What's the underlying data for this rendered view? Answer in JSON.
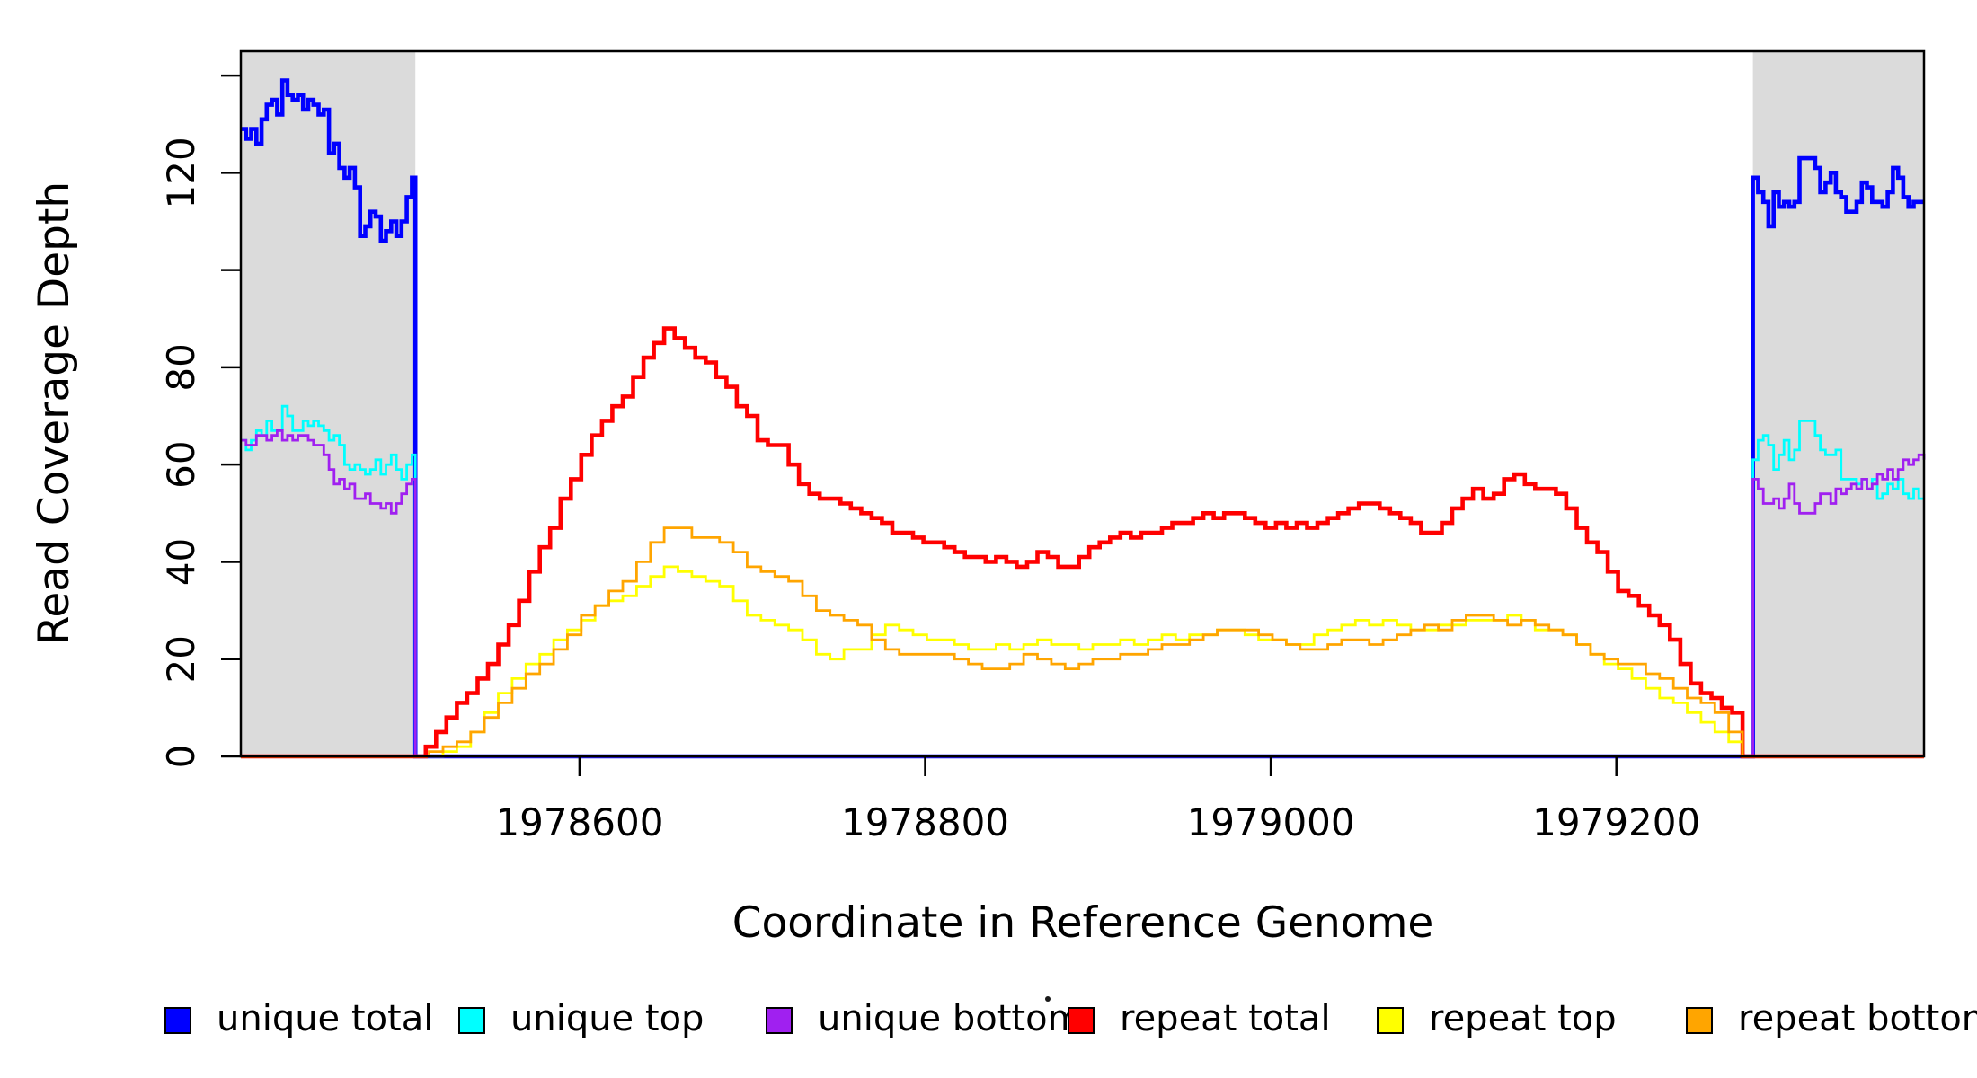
{
  "chart_data": {
    "type": "line",
    "title": "",
    "xlabel": "Coordinate in Reference Genome",
    "ylabel": "Read Coverage Depth",
    "xlim": [
      1978404,
      1979378
    ],
    "ylim": [
      0,
      145
    ],
    "grid": false,
    "interpolation": "step-after",
    "x_ticks": [
      {
        "value": 1978600,
        "label": "1978600"
      },
      {
        "value": 1978800,
        "label": "1978800"
      },
      {
        "value": 1979000,
        "label": "1979000"
      },
      {
        "value": 1979200,
        "label": "1979200"
      }
    ],
    "y_ticks": [
      {
        "value": 0,
        "label": "0"
      },
      {
        "value": 20,
        "label": "20"
      },
      {
        "value": 40,
        "label": "40"
      },
      {
        "value": 60,
        "label": "60"
      },
      {
        "value": 80,
        "label": "80"
      },
      {
        "value": 100,
        "label": ""
      },
      {
        "value": 120,
        "label": "120"
      },
      {
        "value": 140,
        "label": ""
      }
    ],
    "shaded_regions": [
      {
        "from": 1978404,
        "to": 1978505,
        "color": "#DBDBDB"
      },
      {
        "from": 1979279,
        "to": 1979378,
        "color": "#DBDBDB"
      }
    ],
    "series": [
      {
        "name": "unique total",
        "color": "#0000FF",
        "line_width": 4.6,
        "segments": [
          {
            "start": 1978404,
            "step": 3,
            "values": [
              129,
              127,
              129,
              126,
              131,
              134,
              135,
              132,
              139,
              136,
              135,
              136,
              133,
              135,
              134,
              132,
              133,
              124,
              126,
              121,
              119,
              121,
              117,
              107,
              109,
              112,
              111,
              106,
              108,
              110,
              107,
              110,
              115,
              119
            ]
          },
          {
            "start": 1978505,
            "step": 774,
            "values": [
              0,
              0
            ]
          },
          {
            "start": 1979279,
            "step": 3,
            "values": [
              119,
              116,
              114,
              109,
              116,
              113,
              114,
              113,
              114,
              123,
              123,
              123,
              121,
              116,
              118,
              120,
              116,
              115,
              112,
              112,
              114,
              118,
              117,
              114,
              114,
              113,
              116,
              121,
              119,
              115,
              113,
              114,
              114,
              114
            ]
          }
        ]
      },
      {
        "name": "unique top",
        "color": "#00FFFF",
        "line_width": 2.8,
        "segments": [
          {
            "start": 1978404,
            "step": 3,
            "values": [
              65,
              63,
              65,
              67,
              66,
              69,
              67,
              67,
              72,
              70,
              67,
              67,
              69,
              68,
              69,
              68,
              67,
              65,
              66,
              64,
              60,
              59,
              60,
              59,
              58,
              59,
              61,
              58,
              60,
              62,
              59,
              57,
              60,
              62
            ]
          },
          {
            "start": 1978505,
            "step": 774,
            "values": [
              0,
              0
            ]
          },
          {
            "start": 1979279,
            "step": 3,
            "values": [
              61,
              65,
              66,
              64,
              59,
              62,
              65,
              61,
              63,
              69,
              69,
              69,
              66,
              63,
              62,
              62,
              63,
              57,
              57,
              57,
              56,
              57,
              55,
              57,
              53,
              54,
              56,
              55,
              57,
              54,
              53,
              55,
              53,
              53
            ]
          }
        ]
      },
      {
        "name": "unique bottom",
        "color": "#A020F0",
        "line_width": 2.8,
        "segments": [
          {
            "start": 1978404,
            "step": 3,
            "values": [
              65,
              64,
              64,
              66,
              66,
              65,
              66,
              67,
              65,
              66,
              65,
              66,
              66,
              65,
              64,
              64,
              62,
              59,
              56,
              57,
              55,
              56,
              53,
              53,
              54,
              52,
              52,
              51,
              52,
              50,
              52,
              54,
              56,
              57
            ]
          },
          {
            "start": 1978505,
            "step": 774,
            "values": [
              0,
              0
            ]
          },
          {
            "start": 1979279,
            "step": 3,
            "values": [
              57,
              55,
              52,
              52,
              53,
              51,
              53,
              56,
              52,
              50,
              50,
              50,
              52,
              54,
              54,
              52,
              55,
              54,
              55,
              56,
              55,
              57,
              55,
              56,
              58,
              57,
              59,
              57,
              59,
              61,
              60,
              61,
              62,
              61
            ]
          }
        ]
      },
      {
        "name": "repeat total",
        "color": "#FF0000",
        "line_width": 4.6,
        "segments": [
          {
            "start": 1978404,
            "step": 101,
            "values": [
              0,
              0
            ]
          },
          {
            "start": 1978505,
            "step": 6,
            "values": [
              0,
              2,
              5,
              8,
              11,
              13,
              16,
              19,
              23,
              27,
              32,
              38,
              43,
              47,
              53,
              57,
              62,
              66,
              69,
              72,
              74,
              78,
              82,
              85,
              88,
              86,
              84,
              82,
              81,
              78,
              76,
              72,
              70,
              65,
              64,
              64,
              60,
              56,
              54,
              53,
              53,
              52,
              51,
              50,
              49,
              48,
              46,
              46,
              45,
              44,
              44,
              43,
              42,
              41,
              41,
              40,
              41,
              40,
              39,
              40,
              42,
              41,
              39,
              39,
              41,
              43,
              44,
              45,
              46,
              45,
              46,
              46,
              47,
              48,
              48,
              49,
              50,
              49,
              50,
              50,
              49,
              48,
              47,
              48,
              47,
              48,
              47,
              48,
              49,
              50,
              51,
              52,
              52,
              51,
              50,
              49,
              48,
              46,
              46,
              48,
              51,
              53,
              55,
              53,
              54,
              57,
              58,
              56,
              55,
              55,
              54,
              51,
              47,
              44,
              42,
              38,
              34,
              33,
              31,
              29,
              27,
              24,
              19,
              15,
              13,
              12,
              10,
              9,
              0
            ]
          },
          {
            "start": 1979273,
            "step": 105,
            "values": [
              0,
              0
            ]
          }
        ]
      },
      {
        "name": "repeat top",
        "color": "#FFFF00",
        "line_width": 2.8,
        "segments": [
          {
            "start": 1978404,
            "step": 101,
            "values": [
              0,
              0
            ]
          },
          {
            "start": 1978505,
            "step": 8,
            "values": [
              0,
              0,
              1,
              2,
              5,
              9,
              13,
              16,
              19,
              21,
              24,
              26,
              28,
              31,
              32,
              33,
              35,
              37,
              39,
              38,
              37,
              36,
              35,
              32,
              29,
              28,
              27,
              26,
              24,
              21,
              20,
              22,
              22,
              25,
              27,
              26,
              25,
              24,
              24,
              23,
              22,
              22,
              23,
              22,
              23,
              24,
              23,
              23,
              22,
              23,
              23,
              24,
              23,
              24,
              25,
              24,
              25,
              25,
              26,
              26,
              25,
              24,
              24,
              23,
              23,
              25,
              26,
              27,
              28,
              27,
              28,
              27,
              26,
              26,
              27,
              27,
              28,
              28,
              28,
              29,
              28,
              26,
              26,
              25,
              23,
              21,
              19,
              18,
              16,
              14,
              12,
              11,
              9,
              7,
              5,
              3,
              0
            ]
          },
          {
            "start": 1979273,
            "step": 105,
            "values": [
              0,
              0
            ]
          }
        ]
      },
      {
        "name": "repeat bottom",
        "color": "#FFA500",
        "line_width": 2.8,
        "segments": [
          {
            "start": 1978404,
            "step": 101,
            "values": [
              0,
              0
            ]
          },
          {
            "start": 1978505,
            "step": 8,
            "values": [
              0,
              1,
              2,
              3,
              5,
              8,
              11,
              14,
              17,
              19,
              22,
              25,
              29,
              31,
              34,
              36,
              40,
              44,
              47,
              47,
              45,
              45,
              44,
              42,
              39,
              38,
              37,
              36,
              33,
              30,
              29,
              28,
              27,
              24,
              22,
              21,
              21,
              21,
              21,
              20,
              19,
              18,
              18,
              19,
              21,
              20,
              19,
              18,
              19,
              20,
              20,
              21,
              21,
              22,
              23,
              23,
              24,
              25,
              26,
              26,
              26,
              25,
              24,
              23,
              22,
              22,
              23,
              24,
              24,
              23,
              24,
              25,
              26,
              27,
              26,
              28,
              29,
              29,
              28,
              27,
              28,
              27,
              26,
              25,
              23,
              21,
              20,
              19,
              19,
              17,
              16,
              14,
              12,
              11,
              9,
              5,
              0
            ]
          },
          {
            "start": 1979273,
            "step": 105,
            "values": [
              0,
              0
            ]
          }
        ]
      }
    ],
    "legend": {
      "position": "bottom",
      "entries": [
        {
          "label": "unique total",
          "color": "#0000FF"
        },
        {
          "label": "unique top",
          "color": "#00FFFF"
        },
        {
          "label": "unique bottom",
          "color": "#A020F0"
        },
        {
          "label": "repeat total",
          "color": "#FF0000"
        },
        {
          "label": "repeat top",
          "color": "#FFFF00"
        },
        {
          "label": "repeat bottom",
          "color": "#FFA500"
        }
      ]
    }
  }
}
